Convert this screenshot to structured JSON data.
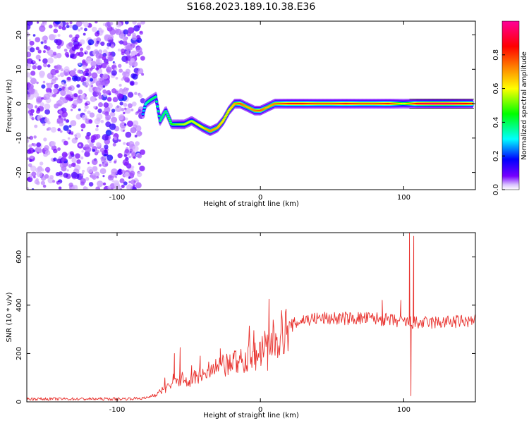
{
  "figure_title": "S168.2023.189.10.38.E36",
  "chart_data": [
    {
      "type": "heatmap",
      "xlabel": "Height of straight line (km)",
      "ylabel": "Frequency (Hz)",
      "xlim": [
        -163,
        150
      ],
      "ylim": [
        -25,
        24
      ],
      "xticks": [
        -100,
        0,
        100
      ],
      "yticks": [
        -20,
        -10,
        0,
        10,
        20
      ],
      "colorbar": {
        "label": "Normalized spectral amplitude",
        "range": [
          0,
          1
        ],
        "ticks": [
          0.0,
          0.2,
          0.4,
          0.6,
          0.8
        ],
        "colors": [
          "#ffffff",
          "#7700ff",
          "#0000ff",
          "#00ffff",
          "#00ff00",
          "#ffff00",
          "#ff8800",
          "#ff0000",
          "#ff0099"
        ]
      },
      "noise_region_x": [
        -163,
        -82
      ],
      "ridge": [
        {
          "x": -82,
          "y": -3,
          "a": 0.35
        },
        {
          "x": -80,
          "y": 0,
          "a": 0.4
        },
        {
          "x": -77,
          "y": 1,
          "a": 0.45
        },
        {
          "x": -73,
          "y": 2,
          "a": 0.45
        },
        {
          "x": -70,
          "y": -5,
          "a": 0.45
        },
        {
          "x": -66,
          "y": -2,
          "a": 0.45
        },
        {
          "x": -62,
          "y": -6,
          "a": 0.5
        },
        {
          "x": -58,
          "y": -6,
          "a": 0.55
        },
        {
          "x": -53,
          "y": -6,
          "a": 0.6
        },
        {
          "x": -48,
          "y": -5,
          "a": 0.6
        },
        {
          "x": -44,
          "y": -6,
          "a": 0.6
        },
        {
          "x": -40,
          "y": -7,
          "a": 0.65
        },
        {
          "x": -35,
          "y": -8,
          "a": 0.75
        },
        {
          "x": -30,
          "y": -7,
          "a": 0.7
        },
        {
          "x": -26,
          "y": -5,
          "a": 0.65
        },
        {
          "x": -22,
          "y": -2,
          "a": 0.65
        },
        {
          "x": -18,
          "y": 0,
          "a": 0.7
        },
        {
          "x": -14,
          "y": 0,
          "a": 0.8
        },
        {
          "x": -9,
          "y": -1,
          "a": 0.7
        },
        {
          "x": -4,
          "y": -2,
          "a": 0.75
        },
        {
          "x": 0,
          "y": -2,
          "a": 0.8
        },
        {
          "x": 5,
          "y": -1,
          "a": 0.7
        },
        {
          "x": 10,
          "y": 0,
          "a": 0.75
        },
        {
          "x": 20,
          "y": 0,
          "a": 0.85
        },
        {
          "x": 30,
          "y": 0,
          "a": 0.85
        },
        {
          "x": 40,
          "y": 0,
          "a": 0.8
        },
        {
          "x": 50,
          "y": 0,
          "a": 0.8
        },
        {
          "x": 60,
          "y": 0,
          "a": 0.85
        },
        {
          "x": 70,
          "y": 0,
          "a": 0.8
        },
        {
          "x": 80,
          "y": 0,
          "a": 0.8
        },
        {
          "x": 90,
          "y": 0,
          "a": 0.85
        },
        {
          "x": 100,
          "y": 0,
          "a": 0.6
        },
        {
          "x": 104,
          "y": 0,
          "a": 0.7
        },
        {
          "x": 110,
          "y": 0,
          "a": 0.9
        },
        {
          "x": 120,
          "y": 0,
          "a": 0.95
        },
        {
          "x": 130,
          "y": 0,
          "a": 0.95
        },
        {
          "x": 140,
          "y": 0,
          "a": 0.9
        },
        {
          "x": 148,
          "y": 0,
          "a": 0.85
        }
      ]
    },
    {
      "type": "line",
      "xlabel": "Height of straight line (km)",
      "ylabel": "SNR (10 * v/v)",
      "xlim": [
        -163,
        150
      ],
      "ylim": [
        0,
        700
      ],
      "xticks": [
        -100,
        0,
        100
      ],
      "yticks": [
        0,
        200,
        400,
        600
      ],
      "series": [
        {
          "color": "#e8302c",
          "envelope": [
            {
              "x": -163,
              "y": 12
            },
            {
              "x": -100,
              "y": 12
            },
            {
              "x": -80,
              "y": 15
            },
            {
              "x": -70,
              "y": 40
            },
            {
              "x": -60,
              "y": 80
            },
            {
              "x": -40,
              "y": 110
            },
            {
              "x": -20,
              "y": 160
            },
            {
              "x": 0,
              "y": 200
            },
            {
              "x": 10,
              "y": 260
            },
            {
              "x": 20,
              "y": 310
            },
            {
              "x": 30,
              "y": 340
            },
            {
              "x": 40,
              "y": 345
            },
            {
              "x": 60,
              "y": 345
            },
            {
              "x": 80,
              "y": 345
            },
            {
              "x": 100,
              "y": 330
            },
            {
              "x": 110,
              "y": 325
            },
            {
              "x": 130,
              "y": 330
            },
            {
              "x": 150,
              "y": 335
            }
          ],
          "spikes": [
            {
              "x": -60,
              "y": 200
            },
            {
              "x": -56,
              "y": 225
            },
            {
              "x": -48,
              "y": 150
            },
            {
              "x": -42,
              "y": 190
            },
            {
              "x": -28,
              "y": 220
            },
            {
              "x": 6,
              "y": 425
            },
            {
              "x": 5,
              "y": 130
            },
            {
              "x": 85,
              "y": 420
            },
            {
              "x": 98,
              "y": 420
            },
            {
              "x": 104,
              "y": 700
            },
            {
              "x": 105,
              "y": 25
            },
            {
              "x": 107,
              "y": 685
            }
          ]
        }
      ]
    }
  ]
}
